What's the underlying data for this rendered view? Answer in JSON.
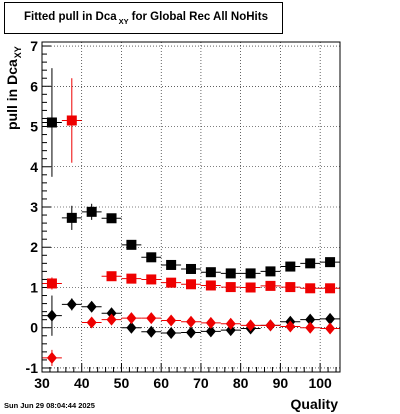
{
  "title": {
    "main": "Fitted pull in Dca",
    "sub": "XY",
    "tail": "for Global Rec All NoHits"
  },
  "ylabel": {
    "main": "pull in Dca",
    "sub": "XY"
  },
  "xlabel": "Quality",
  "datestamp": "Sun Jun 29 08:04:44 2025",
  "colors": {
    "black": "#000000",
    "red": "#ee0000",
    "frame": "#000000"
  },
  "chart_data": {
    "type": "scatter",
    "xlim": [
      30,
      105
    ],
    "ylim": [
      -1.1,
      7.1
    ],
    "xticks": [
      30,
      40,
      50,
      60,
      70,
      80,
      90,
      100
    ],
    "yticks": [
      -1,
      0,
      1,
      2,
      3,
      4,
      5,
      6,
      7
    ],
    "grid": true,
    "bin_half_width": 2.5,
    "series": [
      {
        "marker": "square",
        "color": "black",
        "points": [
          {
            "x": 32.5,
            "y": 5.1,
            "yerr": 1.35
          },
          {
            "x": 37.5,
            "y": 2.73,
            "yerr": 0.3
          },
          {
            "x": 42.5,
            "y": 2.88,
            "yerr": 0.2
          },
          {
            "x": 47.5,
            "y": 2.72,
            "yerr": 0.1
          },
          {
            "x": 52.5,
            "y": 2.06,
            "yerr": 0.05
          },
          {
            "x": 57.5,
            "y": 1.75,
            "yerr": 0.05
          },
          {
            "x": 62.5,
            "y": 1.56,
            "yerr": 0.05
          },
          {
            "x": 67.5,
            "y": 1.46,
            "yerr": 0.05
          },
          {
            "x": 72.5,
            "y": 1.38,
            "yerr": 0.05
          },
          {
            "x": 77.5,
            "y": 1.35,
            "yerr": 0.05
          },
          {
            "x": 82.5,
            "y": 1.35,
            "yerr": 0.05
          },
          {
            "x": 87.5,
            "y": 1.4,
            "yerr": 0.05
          },
          {
            "x": 92.5,
            "y": 1.52,
            "yerr": 0.05
          },
          {
            "x": 97.5,
            "y": 1.6,
            "yerr": 0.05
          },
          {
            "x": 102.5,
            "y": 1.63,
            "yerr": 0.05
          }
        ]
      },
      {
        "marker": "square",
        "color": "red",
        "points": [
          {
            "x": 32.5,
            "y": 1.1,
            "yerr": 0.15
          },
          {
            "x": 37.5,
            "y": 5.15,
            "yerr": 1.05
          },
          {
            "x": 47.5,
            "y": 1.28,
            "yerr": 0.05
          },
          {
            "x": 52.5,
            "y": 1.22,
            "yerr": 0.05
          },
          {
            "x": 57.5,
            "y": 1.2,
            "yerr": 0.05
          },
          {
            "x": 62.5,
            "y": 1.12,
            "yerr": 0.05
          },
          {
            "x": 67.5,
            "y": 1.08,
            "yerr": 0.05
          },
          {
            "x": 72.5,
            "y": 1.05,
            "yerr": 0.05
          },
          {
            "x": 77.5,
            "y": 1.01,
            "yerr": 0.05
          },
          {
            "x": 82.5,
            "y": 1.0,
            "yerr": 0.05
          },
          {
            "x": 87.5,
            "y": 1.04,
            "yerr": 0.05
          },
          {
            "x": 92.5,
            "y": 1.01,
            "yerr": 0.05
          },
          {
            "x": 97.5,
            "y": 0.98,
            "yerr": 0.05
          },
          {
            "x": 102.5,
            "y": 0.98,
            "yerr": 0.05
          }
        ]
      },
      {
        "marker": "diamond",
        "color": "black",
        "points": [
          {
            "x": 32.5,
            "y": 0.3,
            "yerr": 0.5
          },
          {
            "x": 37.5,
            "y": 0.58,
            "yerr": 0.15
          },
          {
            "x": 42.5,
            "y": 0.52,
            "yerr": 0.1
          },
          {
            "x": 47.5,
            "y": 0.36,
            "yerr": 0.05
          },
          {
            "x": 52.5,
            "y": 0.0,
            "yerr": 0.05
          },
          {
            "x": 57.5,
            "y": -0.1,
            "yerr": 0.05
          },
          {
            "x": 62.5,
            "y": -0.13,
            "yerr": 0.05
          },
          {
            "x": 67.5,
            "y": -0.12,
            "yerr": 0.05
          },
          {
            "x": 72.5,
            "y": -0.09,
            "yerr": 0.05
          },
          {
            "x": 77.5,
            "y": -0.06,
            "yerr": 0.05
          },
          {
            "x": 82.5,
            "y": -0.02,
            "yerr": 0.05
          },
          {
            "x": 87.5,
            "y": 0.06,
            "yerr": 0.05
          },
          {
            "x": 92.5,
            "y": 0.15,
            "yerr": 0.05
          },
          {
            "x": 97.5,
            "y": 0.2,
            "yerr": 0.05
          },
          {
            "x": 102.5,
            "y": 0.22,
            "yerr": 0.05
          }
        ]
      },
      {
        "marker": "diamond",
        "color": "red",
        "points": [
          {
            "x": 32.5,
            "y": -0.75,
            "yerr": 0.2
          },
          {
            "x": 42.5,
            "y": 0.13,
            "yerr": 0.05
          },
          {
            "x": 47.5,
            "y": 0.2,
            "yerr": 0.05
          },
          {
            "x": 52.5,
            "y": 0.24,
            "yerr": 0.05
          },
          {
            "x": 57.5,
            "y": 0.24,
            "yerr": 0.05
          },
          {
            "x": 62.5,
            "y": 0.18,
            "yerr": 0.05
          },
          {
            "x": 67.5,
            "y": 0.15,
            "yerr": 0.05
          },
          {
            "x": 72.5,
            "y": 0.12,
            "yerr": 0.05
          },
          {
            "x": 77.5,
            "y": 0.1,
            "yerr": 0.05
          },
          {
            "x": 82.5,
            "y": 0.06,
            "yerr": 0.05
          },
          {
            "x": 87.5,
            "y": 0.06,
            "yerr": 0.05
          },
          {
            "x": 92.5,
            "y": 0.03,
            "yerr": 0.05
          },
          {
            "x": 97.5,
            "y": 0.0,
            "yerr": 0.05
          },
          {
            "x": 102.5,
            "y": -0.02,
            "yerr": 0.05
          }
        ]
      }
    ]
  }
}
